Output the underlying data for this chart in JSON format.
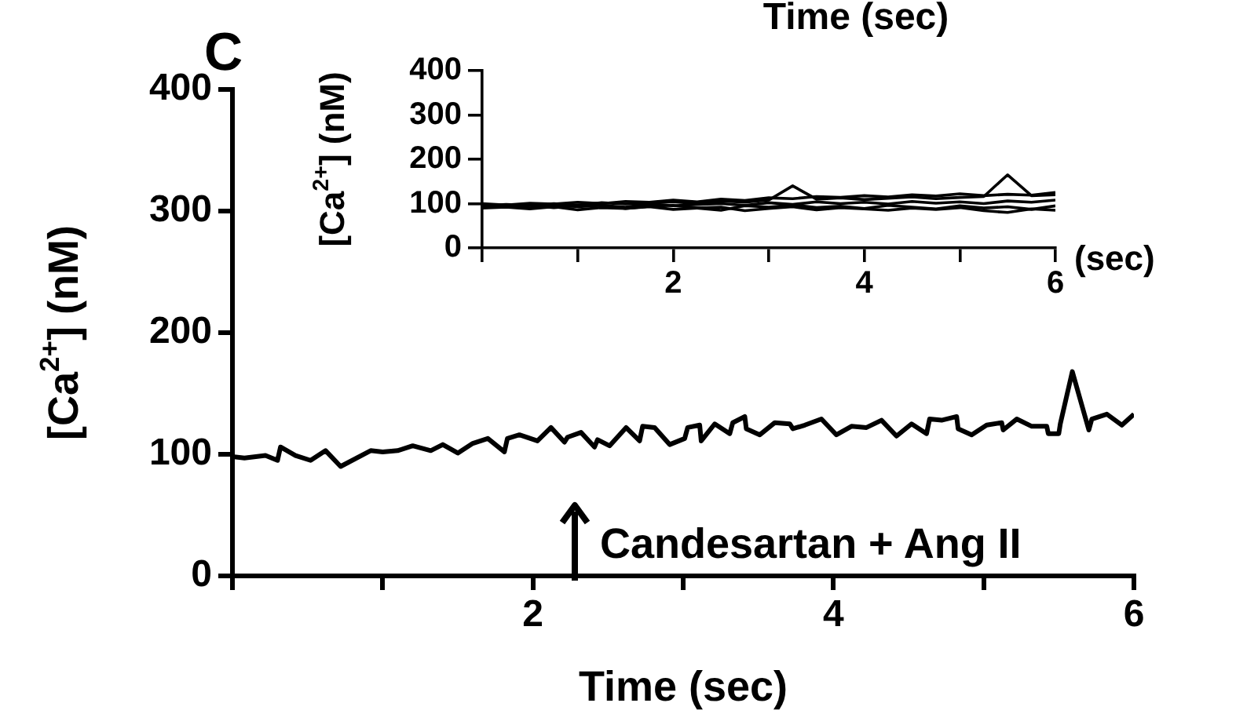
{
  "chart_data": [
    {
      "type": "line",
      "ylabel": "[Ca$^{2+}$] (nM)",
      "xlabel": "Time (sec)",
      "color": "#000000",
      "x": [
        0,
        0.08,
        0.22,
        0.3,
        0.32,
        0.42,
        0.52,
        0.62,
        0.72,
        0.92,
        1.0,
        1.1,
        1.2,
        1.32,
        1.4,
        1.5,
        1.6,
        1.7,
        1.81,
        1.83,
        1.91,
        2.03,
        2.12,
        2.21,
        2.23,
        2.32,
        2.41,
        2.43,
        2.51,
        2.62,
        2.71,
        2.73,
        2.81,
        2.91,
        3.01,
        3.03,
        3.11,
        3.12,
        3.21,
        3.31,
        3.33,
        3.41,
        3.42,
        3.51,
        3.61,
        3.71,
        3.73,
        3.81,
        3.92,
        4.02,
        4.12,
        4.22,
        4.32,
        4.42,
        4.52,
        4.62,
        4.64,
        4.72,
        4.82,
        4.83,
        4.92,
        5.02,
        5.12,
        5.13,
        5.22,
        5.32,
        5.42,
        5.43,
        5.5,
        5.51,
        5.59,
        5.7,
        5.72,
        5.82,
        5.92,
        6.0
      ],
      "values": [
        98,
        97,
        99,
        95,
        106,
        99,
        95,
        103,
        90,
        103,
        102,
        103,
        107,
        103,
        108,
        101,
        109,
        113,
        102,
        113,
        116,
        111,
        122,
        110,
        114,
        118,
        106,
        112,
        107,
        122,
        111,
        123,
        122,
        108,
        113,
        122,
        124,
        111,
        125,
        117,
        126,
        131,
        121,
        116,
        126,
        125,
        121,
        124,
        129,
        116,
        123,
        122,
        128,
        115,
        125,
        117,
        129,
        128,
        131,
        121,
        116,
        124,
        126,
        120,
        129,
        123,
        123,
        117,
        117,
        125,
        168,
        120,
        129,
        133,
        124,
        133
      ],
      "xlim": [
        0,
        6
      ],
      "ylim": [
        0,
        400
      ],
      "xticks": [
        {
          "value": 0,
          "label": null
        },
        {
          "value": 1,
          "label": null
        },
        2,
        {
          "value": 3,
          "label": null
        },
        4,
        {
          "value": 5,
          "label": null
        },
        6
      ],
      "yticks": [
        0,
        100,
        200,
        300,
        400
      ],
      "grid": false,
      "legend": false,
      "marker": "none",
      "line_style": "solid",
      "annotations": [
        "C",
        "Candesartan + Ang II"
      ]
    },
    {
      "type": "line",
      "ylabel": "[Ca$^{2+}$] (nM)",
      "xlabel": "(sec)",
      "x": [
        0,
        0.25,
        0.5,
        0.75,
        1,
        1.25,
        1.5,
        1.75,
        2,
        2.25,
        2.5,
        2.75,
        3,
        3.25,
        3.5,
        3.75,
        4,
        4.25,
        4.5,
        4.75,
        5,
        5.25,
        5.5,
        5.75,
        6
      ],
      "series": [
        {
          "color": "#000000",
          "values": [
            100,
            97,
            101,
            99,
            103,
            100,
            105,
            103,
            108,
            104,
            110,
            107,
            113,
            111,
            116,
            114,
            118,
            115,
            120,
            117,
            122,
            118,
            121,
            119,
            125
          ]
        },
        {
          "color": "#000000",
          "values": [
            95,
            98,
            96,
            100,
            97,
            102,
            99,
            101,
            104,
            100,
            106,
            103,
            108,
            140,
            110,
            113,
            109,
            112,
            115,
            111,
            114,
            116,
            165,
            118,
            120
          ]
        },
        {
          "color": "#000000",
          "values": [
            92,
            95,
            90,
            97,
            93,
            96,
            92,
            99,
            95,
            98,
            100,
            96,
            102,
            98,
            104,
            100,
            103,
            99,
            105,
            101,
            104,
            100,
            106,
            103,
            108
          ]
        },
        {
          "color": "#000000",
          "values": [
            98,
            93,
            96,
            91,
            95,
            97,
            89,
            94,
            96,
            90,
            85,
            95,
            92,
            97,
            91,
            94,
            89,
            96,
            92,
            88,
            95,
            90,
            93,
            87,
            95
          ]
        },
        {
          "color": "#000000",
          "values": [
            90,
            92,
            88,
            93,
            86,
            91,
            89,
            93,
            87,
            90,
            92,
            84,
            89,
            93,
            86,
            91,
            88,
            85,
            90,
            87,
            91,
            84,
            80,
            88,
            85
          ]
        }
      ],
      "xlim": [
        0,
        6
      ],
      "ylim": [
        0,
        400
      ],
      "xticks": [
        {
          "value": 0,
          "label": null
        },
        {
          "value": 1,
          "label": null
        },
        2,
        {
          "value": 3,
          "label": null
        },
        4,
        {
          "value": 5,
          "label": null
        },
        6
      ],
      "yticks": [
        0,
        100,
        200,
        300,
        400
      ],
      "grid": false,
      "legend": false,
      "marker": "none",
      "line_style": "solid",
      "annotations": [
        "Time (sec)"
      ]
    }
  ]
}
